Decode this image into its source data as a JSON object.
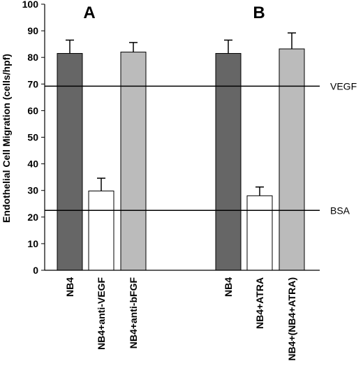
{
  "chart_data": {
    "type": "bar",
    "ylabel": "Endothelial Cell Migration (cells/hpf)",
    "ylim": [
      0,
      100
    ],
    "yticks": [
      0,
      10,
      20,
      30,
      40,
      50,
      60,
      70,
      80,
      90,
      100
    ],
    "grid": false,
    "panels": [
      {
        "label": "A",
        "categories": [
          "NB4",
          "NB4+anti-VEGF",
          "NB4+anti-bFGF"
        ],
        "values": [
          81.5,
          29.8,
          82.0
        ],
        "errors": [
          5.0,
          4.8,
          3.6
        ],
        "colors": [
          "#666666",
          "#ffffff",
          "#bbbbbb"
        ]
      },
      {
        "label": "B",
        "categories": [
          "NB4",
          "NB4+ATRA",
          "NB4+(NB4+ATRA)"
        ],
        "values": [
          81.5,
          28.0,
          83.2
        ],
        "errors": [
          5.0,
          3.3,
          6.0
        ],
        "colors": [
          "#666666",
          "#ffffff",
          "#bbbbbb"
        ]
      }
    ],
    "reference_lines": [
      {
        "label": "VEGF",
        "value": 69.2
      },
      {
        "label": "BSA",
        "value": 22.5
      }
    ]
  }
}
